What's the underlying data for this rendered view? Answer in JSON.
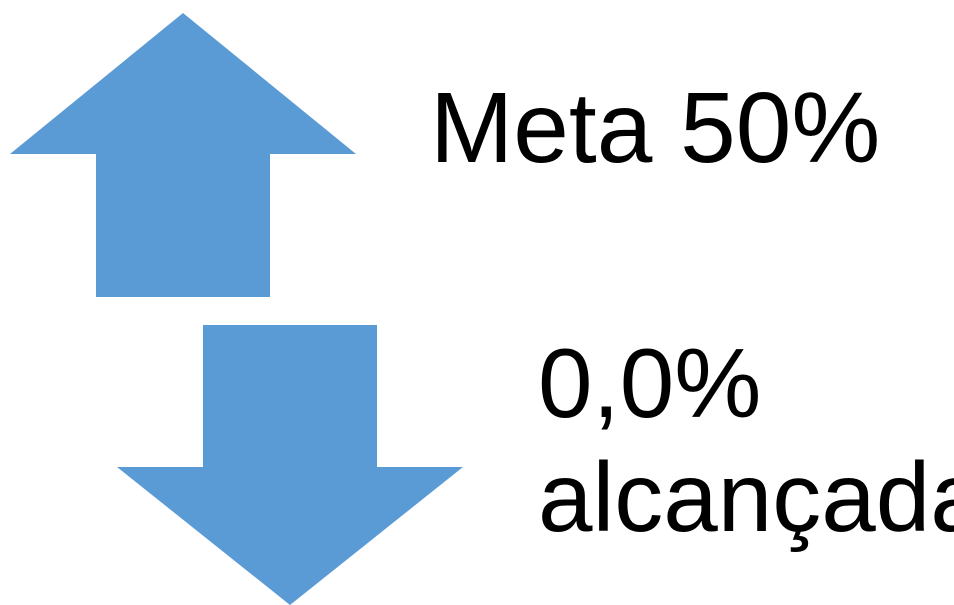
{
  "goal": {
    "label": "Meta 50%"
  },
  "achieved": {
    "value": "0,0%",
    "word": "alcançada"
  },
  "icons": {
    "up": "arrow-up-icon",
    "down": "arrow-down-icon"
  },
  "colors": {
    "arrow_fill": "#5b9bd5",
    "text": "#000000",
    "background": "#ffffff"
  }
}
